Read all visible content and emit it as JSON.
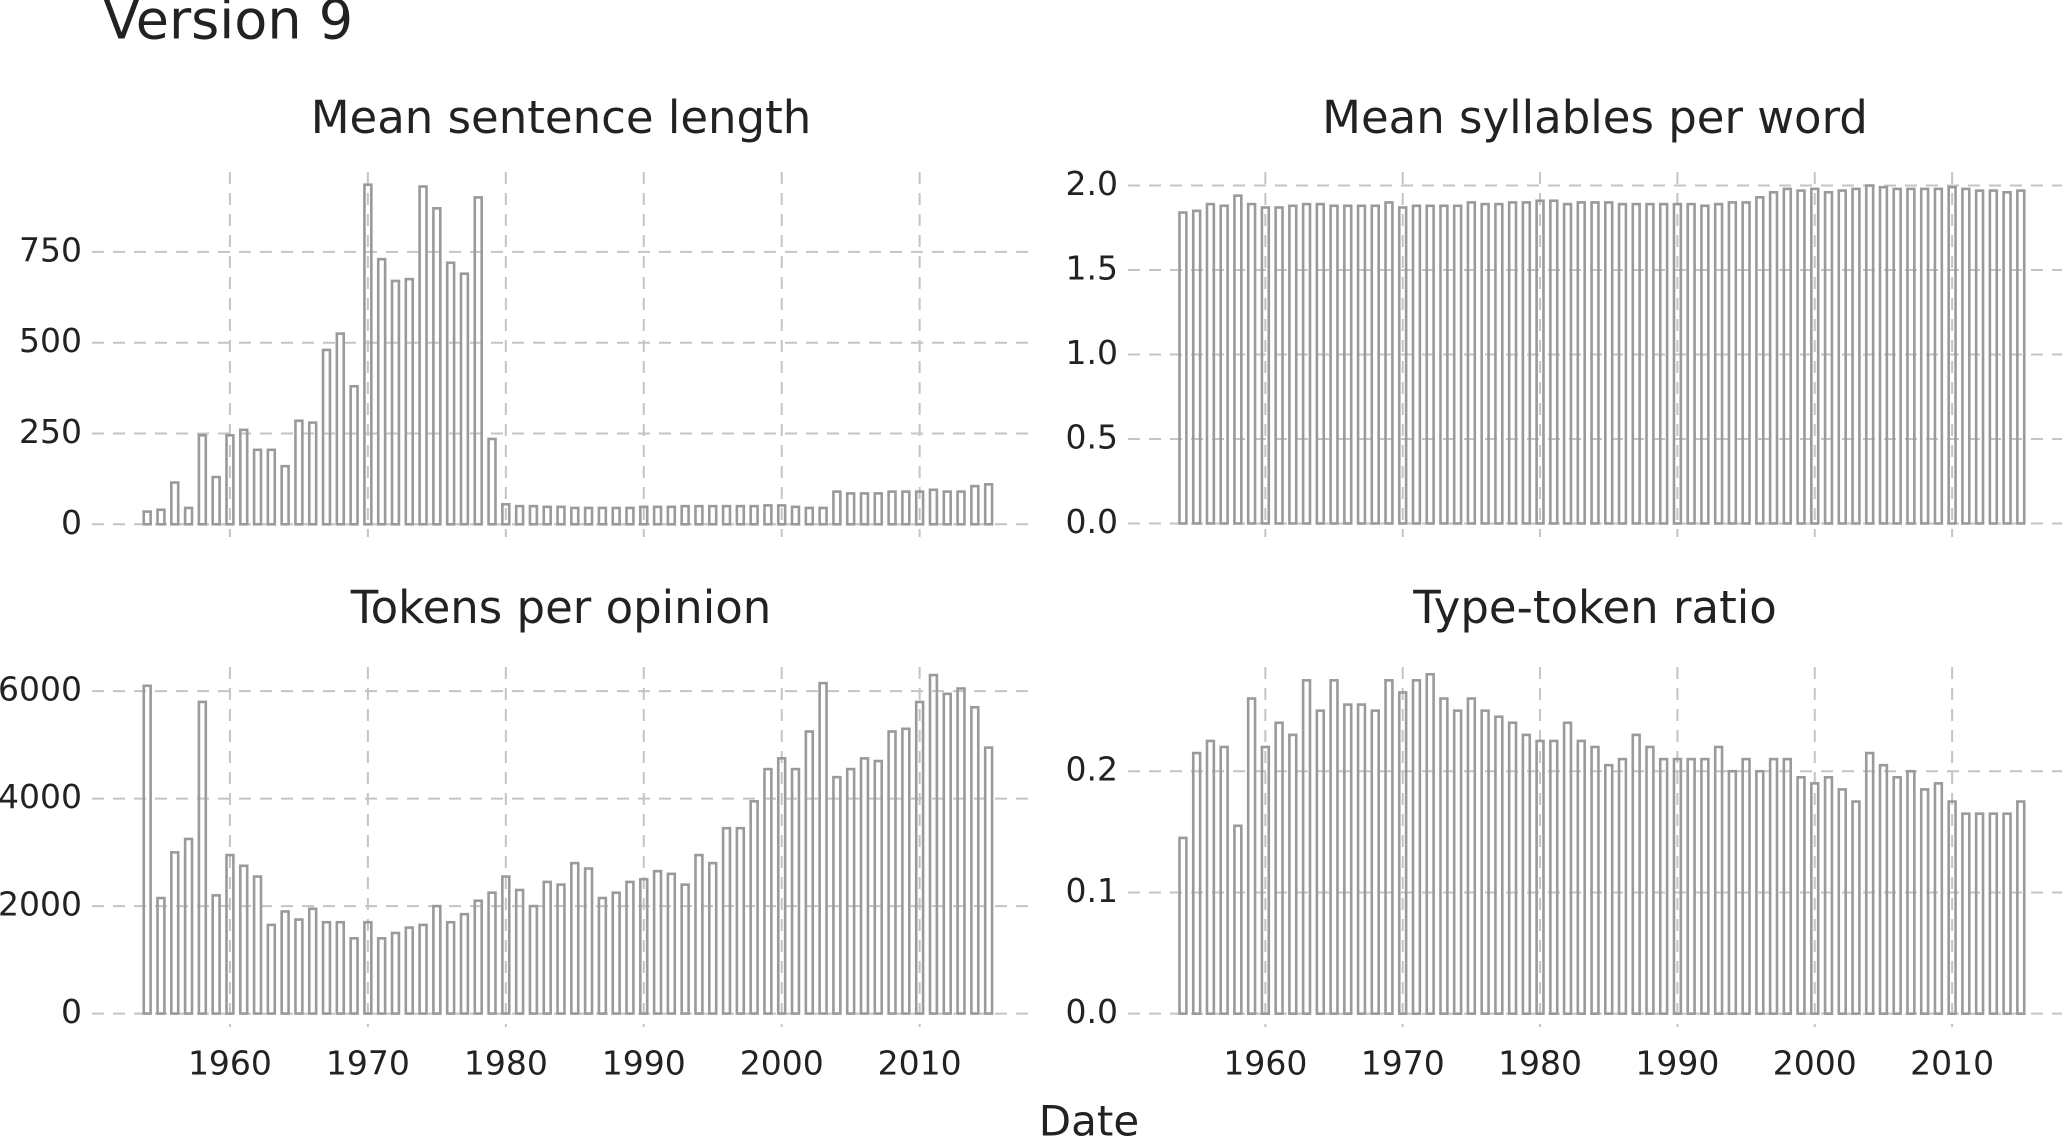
{
  "title": "Version 9",
  "xlabel": "Date",
  "chart_data": [
    {
      "type": "bar",
      "title": "Mean sentence length",
      "color": "#9a9a9a",
      "grid": true,
      "x": [
        1954,
        1955,
        1956,
        1957,
        1958,
        1959,
        1960,
        1961,
        1962,
        1963,
        1964,
        1965,
        1966,
        1967,
        1968,
        1969,
        1970,
        1971,
        1972,
        1973,
        1974,
        1975,
        1976,
        1977,
        1978,
        1979,
        1980,
        1981,
        1982,
        1983,
        1984,
        1985,
        1986,
        1987,
        1988,
        1989,
        1990,
        1991,
        1992,
        1993,
        1994,
        1995,
        1996,
        1997,
        1998,
        1999,
        2000,
        2001,
        2002,
        2003,
        2004,
        2005,
        2006,
        2007,
        2008,
        2009,
        2010,
        2011,
        2012,
        2013,
        2014,
        2015
      ],
      "values": [
        35,
        40,
        115,
        45,
        245,
        130,
        245,
        260,
        205,
        205,
        160,
        285,
        280,
        480,
        525,
        380,
        935,
        730,
        670,
        675,
        930,
        870,
        720,
        690,
        900,
        235,
        55,
        50,
        50,
        48,
        48,
        45,
        45,
        45,
        45,
        45,
        48,
        48,
        48,
        50,
        50,
        50,
        50,
        50,
        50,
        52,
        52,
        48,
        45,
        45,
        90,
        85,
        85,
        85,
        90,
        90,
        90,
        95,
        90,
        90,
        105,
        110
      ],
      "xlim": [
        1950,
        2018
      ],
      "xticks": [
        1960,
        1970,
        1980,
        1990,
        2000,
        2010
      ],
      "ylim": [
        -35,
        970
      ],
      "yticks": [
        0,
        250,
        500,
        750
      ]
    },
    {
      "type": "bar",
      "title": "Mean syllables per word",
      "color": "#9a9a9a",
      "grid": true,
      "x": [
        1954,
        1955,
        1956,
        1957,
        1958,
        1959,
        1960,
        1961,
        1962,
        1963,
        1964,
        1965,
        1966,
        1967,
        1968,
        1969,
        1970,
        1971,
        1972,
        1973,
        1974,
        1975,
        1976,
        1977,
        1978,
        1979,
        1980,
        1981,
        1982,
        1983,
        1984,
        1985,
        1986,
        1987,
        1988,
        1989,
        1990,
        1991,
        1992,
        1993,
        1994,
        1995,
        1996,
        1997,
        1998,
        1999,
        2000,
        2001,
        2002,
        2003,
        2004,
        2005,
        2006,
        2007,
        2008,
        2009,
        2010,
        2011,
        2012,
        2013,
        2014,
        2015
      ],
      "values": [
        1.84,
        1.85,
        1.89,
        1.88,
        1.94,
        1.89,
        1.87,
        1.87,
        1.88,
        1.89,
        1.89,
        1.88,
        1.88,
        1.88,
        1.88,
        1.9,
        1.87,
        1.88,
        1.88,
        1.88,
        1.88,
        1.9,
        1.89,
        1.89,
        1.9,
        1.9,
        1.91,
        1.91,
        1.89,
        1.9,
        1.9,
        1.9,
        1.89,
        1.89,
        1.89,
        1.89,
        1.89,
        1.89,
        1.88,
        1.89,
        1.9,
        1.9,
        1.93,
        1.96,
        1.98,
        1.97,
        1.98,
        1.96,
        1.97,
        1.98,
        2.0,
        1.99,
        1.98,
        1.98,
        1.98,
        1.98,
        1.99,
        1.98,
        1.97,
        1.97,
        1.96,
        1.97
      ],
      "xlim": [
        1950,
        2018
      ],
      "xticks": [
        1960,
        1970,
        1980,
        1990,
        2000,
        2010
      ],
      "ylim": [
        -0.08,
        2.08
      ],
      "yticks": [
        {
          "value": 0,
          "label": "0.0"
        },
        0.5,
        {
          "value": 1,
          "label": "1.0"
        },
        1.5,
        {
          "value": 2,
          "label": "2.0"
        }
      ]
    },
    {
      "type": "bar",
      "title": "Tokens per opinion",
      "color": "#9a9a9a",
      "grid": true,
      "x": [
        1954,
        1955,
        1956,
        1957,
        1958,
        1959,
        1960,
        1961,
        1962,
        1963,
        1964,
        1965,
        1966,
        1967,
        1968,
        1969,
        1970,
        1971,
        1972,
        1973,
        1974,
        1975,
        1976,
        1977,
        1978,
        1979,
        1980,
        1981,
        1982,
        1983,
        1984,
        1985,
        1986,
        1987,
        1988,
        1989,
        1990,
        1991,
        1992,
        1993,
        1994,
        1995,
        1996,
        1997,
        1998,
        1999,
        2000,
        2001,
        2002,
        2003,
        2004,
        2005,
        2006,
        2007,
        2008,
        2009,
        2010,
        2011,
        2012,
        2013,
        2014,
        2015
      ],
      "values": [
        6100,
        2150,
        3000,
        3250,
        5800,
        2200,
        2950,
        2750,
        2550,
        1650,
        1900,
        1750,
        1950,
        1700,
        1700,
        1400,
        1700,
        1400,
        1500,
        1600,
        1650,
        2000,
        1700,
        1850,
        2100,
        2250,
        2550,
        2300,
        2000,
        2450,
        2400,
        2800,
        2700,
        2150,
        2250,
        2450,
        2500,
        2650,
        2600,
        2400,
        2950,
        2800,
        3450,
        3450,
        3950,
        4550,
        4750,
        4550,
        5250,
        6150,
        4400,
        4550,
        4750,
        4700,
        5250,
        5300,
        5800,
        6300,
        5950,
        6050,
        5700,
        4950
      ],
      "xlim": [
        1950,
        2018
      ],
      "xticks": [
        1960,
        1970,
        1980,
        1990,
        2000,
        2010
      ],
      "ylim": [
        -250,
        6450
      ],
      "yticks": [
        0,
        2000,
        4000,
        6000
      ]
    },
    {
      "type": "bar",
      "title": "Type-token ratio",
      "color": "#9a9a9a",
      "grid": true,
      "x": [
        1954,
        1955,
        1956,
        1957,
        1958,
        1959,
        1960,
        1961,
        1962,
        1963,
        1964,
        1965,
        1966,
        1967,
        1968,
        1969,
        1970,
        1971,
        1972,
        1973,
        1974,
        1975,
        1976,
        1977,
        1978,
        1979,
        1980,
        1981,
        1982,
        1983,
        1984,
        1985,
        1986,
        1987,
        1988,
        1989,
        1990,
        1991,
        1992,
        1993,
        1994,
        1995,
        1996,
        1997,
        1998,
        1999,
        2000,
        2001,
        2002,
        2003,
        2004,
        2005,
        2006,
        2007,
        2008,
        2009,
        2010,
        2011,
        2012,
        2013,
        2014,
        2015
      ],
      "values": [
        0.145,
        0.215,
        0.225,
        0.22,
        0.155,
        0.26,
        0.22,
        0.24,
        0.23,
        0.275,
        0.25,
        0.275,
        0.255,
        0.255,
        0.25,
        0.275,
        0.265,
        0.275,
        0.28,
        0.26,
        0.25,
        0.26,
        0.25,
        0.245,
        0.24,
        0.23,
        0.225,
        0.225,
        0.24,
        0.225,
        0.22,
        0.205,
        0.21,
        0.23,
        0.22,
        0.21,
        0.21,
        0.21,
        0.21,
        0.22,
        0.2,
        0.21,
        0.2,
        0.21,
        0.21,
        0.195,
        0.19,
        0.195,
        0.185,
        0.175,
        0.215,
        0.205,
        0.195,
        0.2,
        0.185,
        0.19,
        0.175,
        0.165,
        0.165,
        0.165,
        0.165,
        0.175
      ],
      "xlim": [
        1950,
        2018
      ],
      "xticks": [
        1960,
        1970,
        1980,
        1990,
        2000,
        2010
      ],
      "ylim": [
        -0.011,
        0.286
      ],
      "yticks": [
        {
          "value": 0,
          "label": "0.0"
        },
        0.1,
        0.2
      ]
    }
  ]
}
